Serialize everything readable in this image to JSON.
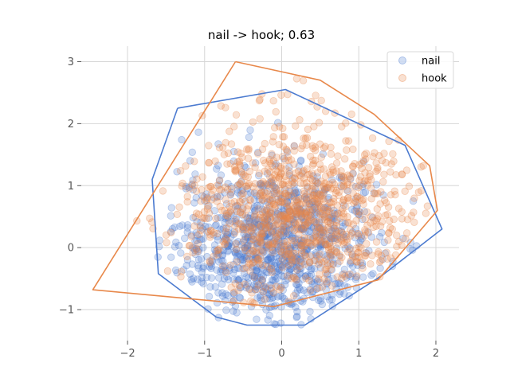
{
  "chart_data": {
    "type": "scatter",
    "title": "nail -> hook; 0.63",
    "xlabel": "",
    "ylabel": "",
    "xlim": [
      -2.6,
      2.3
    ],
    "ylim": [
      -1.5,
      3.25
    ],
    "x_ticks": [
      -2,
      -1,
      0,
      1,
      2
    ],
    "y_ticks": [
      -1,
      0,
      1,
      2,
      3
    ],
    "x_tick_labels": [
      "−2",
      "−1",
      "0",
      "1",
      "2"
    ],
    "y_tick_labels": [
      "−1",
      "0",
      "1",
      "2",
      "3"
    ],
    "grid": true,
    "legend_position": "top-right",
    "series": [
      {
        "name": "nail",
        "color": "#4c7bd0",
        "marker_alpha": 0.25,
        "point_count": 1000,
        "distribution": {
          "center": [
            -0.05,
            0.05
          ],
          "spread": [
            0.65,
            0.62
          ]
        },
        "hull": [
          [
            -1.35,
            2.25
          ],
          [
            0.05,
            2.55
          ],
          [
            1.6,
            1.65
          ],
          [
            2.08,
            0.3
          ],
          [
            1.3,
            -0.45
          ],
          [
            0.3,
            -1.25
          ],
          [
            -0.45,
            -1.25
          ],
          [
            -0.85,
            -1.12
          ],
          [
            -1.6,
            -0.42
          ],
          [
            -1.68,
            1.1
          ],
          [
            -1.35,
            2.25
          ]
        ]
      },
      {
        "name": "hook",
        "color": "#e8884a",
        "marker_alpha": 0.25,
        "point_count": 1000,
        "distribution": {
          "center": [
            0.2,
            0.6
          ],
          "spread": [
            0.75,
            0.72
          ]
        },
        "hull": [
          [
            -0.6,
            3.0
          ],
          [
            0.5,
            2.7
          ],
          [
            1.2,
            2.15
          ],
          [
            1.92,
            1.32
          ],
          [
            2.02,
            0.6
          ],
          [
            1.25,
            -0.52
          ],
          [
            -0.1,
            -0.95
          ],
          [
            -2.45,
            -0.68
          ],
          [
            -0.6,
            3.0
          ]
        ]
      }
    ]
  }
}
